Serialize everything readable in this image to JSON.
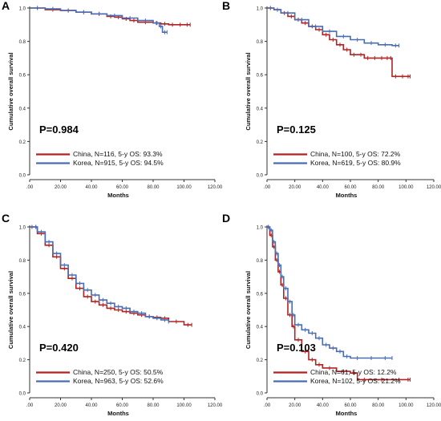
{
  "colors": {
    "china": "#b22222",
    "korea": "#4a6cb3",
    "axis": "#333333"
  },
  "chart_data": [
    {
      "type": "line",
      "panel_letter": "A",
      "xlabel": "Months",
      "ylabel": "Cumulative overall survival",
      "xlim": [
        0,
        120
      ],
      "ylim": [
        0,
        1
      ],
      "xticks": [
        ".00",
        "20.00",
        "40.00",
        "60.00",
        "80.00",
        "100.00",
        "120.00"
      ],
      "yticks": [
        "0.0",
        "0.2",
        "0.4",
        "0.6",
        "0.8",
        "1.0"
      ],
      "pvalue": "P=0.984",
      "legend_position": "bottom-left",
      "series": [
        {
          "name": "China, N=116, 5-y OS: 93.3%",
          "color_key": "china",
          "x": [
            0,
            10,
            20,
            30,
            40,
            50,
            55,
            60,
            65,
            70,
            80,
            85,
            90,
            95,
            100,
            104
          ],
          "y": [
            1.0,
            0.99,
            0.985,
            0.975,
            0.965,
            0.95,
            0.945,
            0.935,
            0.925,
            0.915,
            0.91,
            0.905,
            0.9,
            0.9,
            0.9,
            0.9
          ]
        },
        {
          "name": "Korea, N=915, 5-y OS: 94.5%",
          "color_key": "korea",
          "x": [
            0,
            10,
            20,
            30,
            40,
            50,
            60,
            70,
            80,
            84,
            86,
            89
          ],
          "y": [
            1.0,
            0.995,
            0.985,
            0.975,
            0.965,
            0.955,
            0.94,
            0.925,
            0.91,
            0.89,
            0.855,
            0.855
          ]
        }
      ]
    },
    {
      "type": "line",
      "panel_letter": "B",
      "xlabel": "Months",
      "ylabel": "Cumulative overall survival",
      "xlim": [
        0,
        120
      ],
      "ylim": [
        0,
        1
      ],
      "xticks": [
        ".00",
        "20.00",
        "40.00",
        "60.00",
        "80.00",
        "100.00",
        "120.00"
      ],
      "yticks": [
        "0.0",
        "0.2",
        "0.4",
        "0.6",
        "0.8",
        "1.0"
      ],
      "pvalue": "P=0.125",
      "legend_position": "bottom-left",
      "series": [
        {
          "name": "China, N=100, 5-y OS: 72.2%",
          "color_key": "china",
          "x": [
            0,
            5,
            10,
            15,
            20,
            25,
            30,
            35,
            40,
            45,
            50,
            55,
            60,
            65,
            70,
            75,
            80,
            85,
            88,
            90,
            95,
            100,
            103
          ],
          "y": [
            1.0,
            0.99,
            0.97,
            0.95,
            0.93,
            0.91,
            0.89,
            0.87,
            0.84,
            0.81,
            0.78,
            0.75,
            0.72,
            0.72,
            0.7,
            0.7,
            0.7,
            0.7,
            0.7,
            0.59,
            0.59,
            0.59,
            0.59
          ]
        },
        {
          "name": "Korea, N=619, 5-y OS: 80.9%",
          "color_key": "korea",
          "x": [
            0,
            5,
            10,
            20,
            30,
            40,
            50,
            60,
            70,
            80,
            90,
            95
          ],
          "y": [
            1.0,
            0.99,
            0.97,
            0.93,
            0.89,
            0.86,
            0.83,
            0.81,
            0.79,
            0.78,
            0.775,
            0.775
          ]
        }
      ]
    },
    {
      "type": "line",
      "panel_letter": "C",
      "xlabel": "Months",
      "ylabel": "Cumulative overall survival",
      "xlim": [
        0,
        120
      ],
      "ylim": [
        0,
        1
      ],
      "xticks": [
        ".00",
        "20.00",
        "40.00",
        "60.00",
        "80.00",
        "100.00",
        "120.00"
      ],
      "yticks": [
        "0.0",
        "0.2",
        "0.4",
        "0.6",
        "0.8",
        "1.0"
      ],
      "pvalue": "P=0.420",
      "legend_position": "bottom-left",
      "series": [
        {
          "name": "China, N=250, 5-y OS: 50.5%",
          "color_key": "china",
          "x": [
            0,
            3,
            5,
            10,
            15,
            20,
            25,
            30,
            35,
            40,
            45,
            50,
            55,
            60,
            65,
            70,
            75,
            80,
            85,
            90,
            100,
            105
          ],
          "y": [
            1.0,
            1.0,
            0.96,
            0.89,
            0.82,
            0.75,
            0.69,
            0.63,
            0.58,
            0.55,
            0.53,
            0.51,
            0.5,
            0.49,
            0.48,
            0.47,
            0.46,
            0.455,
            0.45,
            0.43,
            0.41,
            0.41
          ]
        },
        {
          "name": "Korea, N=963, 5-y OS: 52.6%",
          "color_key": "korea",
          "x": [
            0,
            3,
            5,
            10,
            15,
            20,
            25,
            30,
            35,
            40,
            45,
            50,
            55,
            60,
            65,
            70,
            75,
            80,
            85,
            90
          ],
          "y": [
            1.0,
            1.0,
            0.97,
            0.91,
            0.84,
            0.77,
            0.71,
            0.66,
            0.62,
            0.59,
            0.56,
            0.54,
            0.52,
            0.51,
            0.49,
            0.48,
            0.46,
            0.45,
            0.44,
            0.43
          ]
        }
      ]
    },
    {
      "type": "line",
      "panel_letter": "D",
      "xlabel": "Months",
      "ylabel": "Cumulative overall survival",
      "xlim": [
        0,
        120
      ],
      "ylim": [
        0,
        1
      ],
      "xticks": [
        ".00",
        "20.00",
        "40.00",
        "60.00",
        "80.00",
        "100.00",
        "120.00"
      ],
      "yticks": [
        "0.0",
        "0.2",
        "0.4",
        "0.6",
        "0.8",
        "1.0"
      ],
      "pvalue": "P=0.103",
      "legend_position": "bottom-left",
      "series": [
        {
          "name": "China, N=61, 5-y OS: 12.2%",
          "color_key": "china",
          "x": [
            0,
            2,
            4,
            6,
            8,
            10,
            12,
            15,
            18,
            20,
            25,
            30,
            35,
            40,
            50,
            60,
            65,
            75,
            90,
            100,
            103
          ],
          "y": [
            1.0,
            0.95,
            0.88,
            0.8,
            0.73,
            0.65,
            0.57,
            0.47,
            0.4,
            0.32,
            0.25,
            0.2,
            0.17,
            0.15,
            0.13,
            0.12,
            0.08,
            0.08,
            0.08,
            0.08,
            0.08
          ]
        },
        {
          "name": "Korea, N=102, 5-y OS: 21.2%",
          "color_key": "korea",
          "x": [
            0,
            2,
            4,
            6,
            8,
            10,
            12,
            15,
            18,
            20,
            25,
            30,
            35,
            40,
            45,
            50,
            55,
            60,
            70,
            80,
            90
          ],
          "y": [
            1.0,
            0.98,
            0.91,
            0.84,
            0.77,
            0.7,
            0.63,
            0.55,
            0.47,
            0.41,
            0.38,
            0.36,
            0.33,
            0.29,
            0.27,
            0.25,
            0.22,
            0.21,
            0.21,
            0.21,
            0.21
          ]
        }
      ]
    }
  ]
}
